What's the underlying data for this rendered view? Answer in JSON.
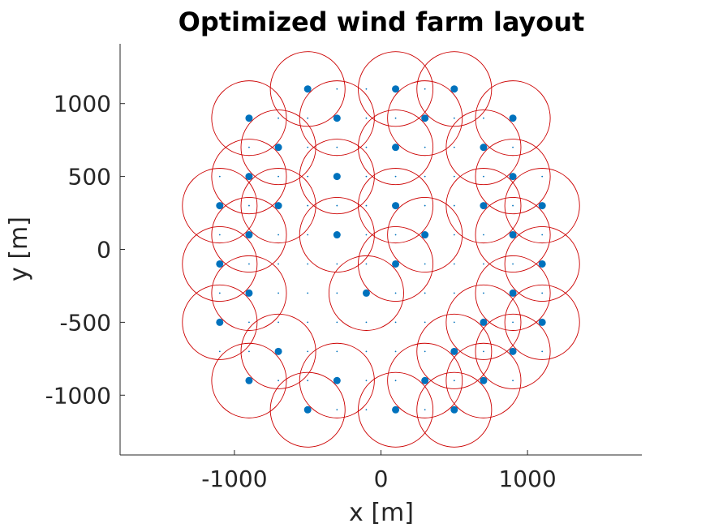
{
  "chart_data": {
    "type": "scatter",
    "title": "Optimized wind farm layout",
    "xlabel": "x [m]",
    "ylabel": "y [m]",
    "xlim": [
      -1780,
      1780
    ],
    "ylim": [
      -1410,
      1410
    ],
    "xticks": [
      -1000,
      0,
      1000
    ],
    "yticks": [
      -1000,
      -500,
      0,
      500,
      1000
    ],
    "xtick_labels": [
      "-1000",
      "0",
      "1000"
    ],
    "ytick_labels": [
      "-1000",
      "-500",
      "0",
      "500",
      "1000"
    ],
    "grid": false,
    "legend": false,
    "colors": {
      "turbine": "#0072BD",
      "wake_circle": "#CC0000",
      "axis": "#262626"
    },
    "wake_radius": 255,
    "turbines": [
      [
        -500,
        1100
      ],
      [
        100,
        1100
      ],
      [
        500,
        1100
      ],
      [
        -900,
        900
      ],
      [
        -300,
        900
      ],
      [
        300,
        900
      ],
      [
        900,
        900
      ],
      [
        -700,
        700
      ],
      [
        100,
        700
      ],
      [
        700,
        700
      ],
      [
        -900,
        500
      ],
      [
        -300,
        500
      ],
      [
        900,
        500
      ],
      [
        -1100,
        300
      ],
      [
        -700,
        300
      ],
      [
        100,
        300
      ],
      [
        700,
        300
      ],
      [
        1100,
        300
      ],
      [
        -900,
        100
      ],
      [
        -300,
        100
      ],
      [
        300,
        100
      ],
      [
        900,
        100
      ],
      [
        -1100,
        -100
      ],
      [
        100,
        -100
      ],
      [
        1100,
        -100
      ],
      [
        -900,
        -300
      ],
      [
        -100,
        -300
      ],
      [
        900,
        -300
      ],
      [
        -1100,
        -500
      ],
      [
        700,
        -500
      ],
      [
        1100,
        -500
      ],
      [
        -700,
        -700
      ],
      [
        500,
        -700
      ],
      [
        900,
        -700
      ],
      [
        -900,
        -900
      ],
      [
        -300,
        -900
      ],
      [
        300,
        -900
      ],
      [
        700,
        -900
      ],
      [
        -500,
        -1100
      ],
      [
        100,
        -1100
      ],
      [
        500,
        -1100
      ]
    ],
    "candidate_sites": [
      [
        -300,
        1100
      ],
      [
        -100,
        1100
      ],
      [
        300,
        1100
      ],
      [
        -700,
        900
      ],
      [
        -500,
        900
      ],
      [
        -100,
        900
      ],
      [
        100,
        900
      ],
      [
        500,
        900
      ],
      [
        700,
        900
      ],
      [
        -900,
        700
      ],
      [
        -500,
        700
      ],
      [
        -300,
        700
      ],
      [
        -100,
        700
      ],
      [
        300,
        700
      ],
      [
        500,
        700
      ],
      [
        900,
        700
      ],
      [
        -1100,
        500
      ],
      [
        -700,
        500
      ],
      [
        -500,
        500
      ],
      [
        -100,
        500
      ],
      [
        100,
        500
      ],
      [
        300,
        500
      ],
      [
        500,
        500
      ],
      [
        700,
        500
      ],
      [
        1100,
        500
      ],
      [
        -900,
        300
      ],
      [
        -500,
        300
      ],
      [
        -300,
        300
      ],
      [
        -100,
        300
      ],
      [
        300,
        300
      ],
      [
        500,
        300
      ],
      [
        900,
        300
      ],
      [
        -1100,
        100
      ],
      [
        -700,
        100
      ],
      [
        -500,
        100
      ],
      [
        -100,
        100
      ],
      [
        100,
        100
      ],
      [
        500,
        100
      ],
      [
        700,
        100
      ],
      [
        1100,
        100
      ],
      [
        -900,
        -100
      ],
      [
        -700,
        -100
      ],
      [
        -500,
        -100
      ],
      [
        -300,
        -100
      ],
      [
        -100,
        -100
      ],
      [
        300,
        -100
      ],
      [
        500,
        -100
      ],
      [
        700,
        -100
      ],
      [
        900,
        -100
      ],
      [
        -1100,
        -300
      ],
      [
        -700,
        -300
      ],
      [
        -500,
        -300
      ],
      [
        -300,
        -300
      ],
      [
        100,
        -300
      ],
      [
        300,
        -300
      ],
      [
        500,
        -300
      ],
      [
        700,
        -300
      ],
      [
        1100,
        -300
      ],
      [
        -900,
        -500
      ],
      [
        -700,
        -500
      ],
      [
        -500,
        -500
      ],
      [
        -300,
        -500
      ],
      [
        -100,
        -500
      ],
      [
        100,
        -500
      ],
      [
        300,
        -500
      ],
      [
        500,
        -500
      ],
      [
        900,
        -500
      ],
      [
        -1100,
        -700
      ],
      [
        -900,
        -700
      ],
      [
        -500,
        -700
      ],
      [
        -300,
        -700
      ],
      [
        -100,
        -700
      ],
      [
        100,
        -700
      ],
      [
        300,
        -700
      ],
      [
        700,
        -700
      ],
      [
        1100,
        -700
      ],
      [
        -700,
        -900
      ],
      [
        -500,
        -900
      ],
      [
        -100,
        -900
      ],
      [
        100,
        -900
      ],
      [
        500,
        -900
      ],
      [
        900,
        -900
      ],
      [
        -300,
        -1100
      ],
      [
        -100,
        -1100
      ],
      [
        300,
        -1100
      ]
    ]
  }
}
